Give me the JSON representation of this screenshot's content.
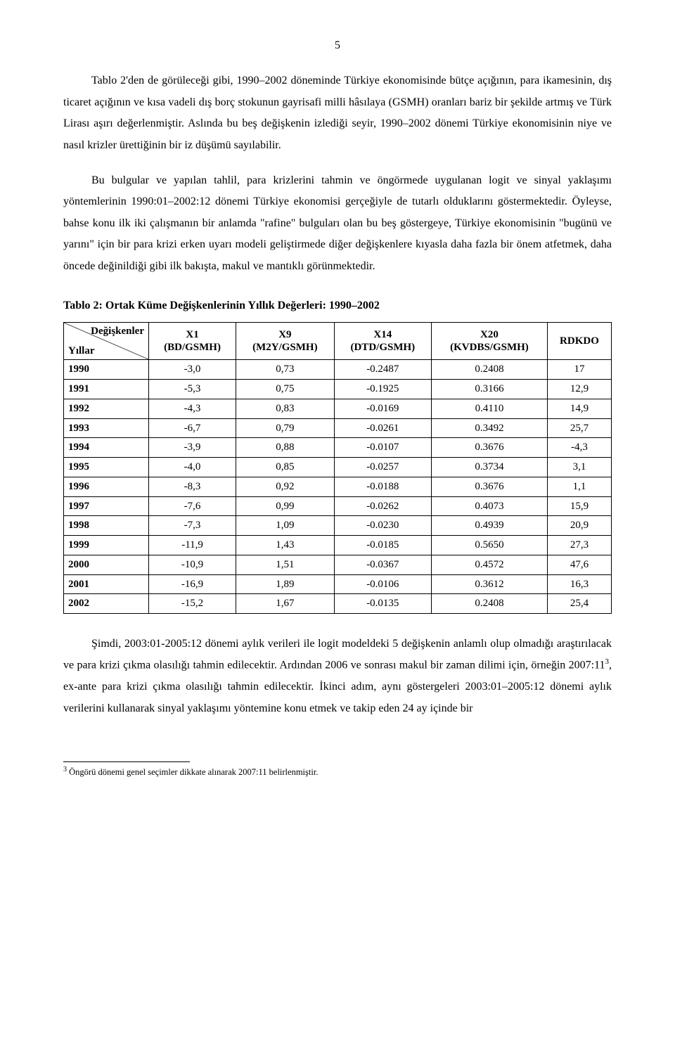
{
  "page_number": "5",
  "paragraphs": {
    "p1": "Tablo 2'den de görüleceği gibi, 1990–2002 döneminde Türkiye ekonomisinde bütçe açığının, para ikamesinin, dış ticaret açığının ve kısa vadeli dış borç stokunun gayrisafi milli hâsılaya (GSMH) oranları bariz bir şekilde artmış ve Türk Lirası aşırı değerlenmiştir. Aslında bu beş değişkenin izlediği seyir, 1990–2002 dönemi Türkiye ekonomisinin niye ve nasıl krizler ürettiğinin bir iz düşümü sayılabilir.",
    "p2_a": "Bu bulgular ve yapılan tahlil, para krizlerini tahmin ve öngörmede uygulanan logit ve sinyal yaklaşımı yöntemlerinin 1990:01–2002:12 dönemi Türkiye ekonomisi gerçeğiyle de tutarlı olduklarını göstermektedir. Öyleyse, bahse konu ilk iki çalışmanın bir anlamda \"rafine\" bulguları olan bu beş göstergeye, Türkiye ekonomisinin \"bugünü ve yarını\" için bir para krizi erken uyarı modeli geliştirmede diğer değişkenlere kıyasla daha fazla bir önem atfetmek, daha öncede değinildiği gibi ilk bakışta, makul ve mantıklı görünmektedir.",
    "p3_a": "Şimdi, 2003:01-2005:12 dönemi aylık verileri ile logit modeldeki 5 değişkenin anlamlı olup olmadığı araştırılacak ve para krizi çıkma olasılığı tahmin edilecektir. Ardından 2006 ve sonrası makul bir zaman dilimi için, örneğin 2007:11",
    "p3_b": ", ex-ante para krizi çıkma olasılığı tahmin edilecektir. İkinci adım, aynı göstergeleri 2003:01–2005:12 dönemi aylık verilerini kullanarak sinyal yaklaşımı yöntemine konu etmek ve takip eden 24 ay içinde bir",
    "p3_sup": "3"
  },
  "table": {
    "title": "Tablo 2: Ortak Küme Değişkenlerinin Yıllık Değerleri: 1990–2002",
    "header": {
      "corner_top": "Değişkenler",
      "corner_bottom": "Yıllar",
      "cols": [
        {
          "line1": "X1",
          "line2": "(BD/GSMH)"
        },
        {
          "line1": "X9",
          "line2": "(M2Y/GSMH)"
        },
        {
          "line1": "X14",
          "line2": "(DTD/GSMH)"
        },
        {
          "line1": "X20",
          "line2": "(KVDBS/GSMH)"
        },
        {
          "line1": "RDKDO",
          "line2": ""
        }
      ]
    },
    "rows": [
      {
        "year": "1990",
        "c1": "-3,0",
        "c2": "0,73",
        "c3": "-0.2487",
        "c4": "0.2408",
        "c5": "17"
      },
      {
        "year": "1991",
        "c1": "-5,3",
        "c2": "0,75",
        "c3": "-0.1925",
        "c4": "0.3166",
        "c5": "12,9"
      },
      {
        "year": "1992",
        "c1": "-4,3",
        "c2": "0,83",
        "c3": "-0.0169",
        "c4": "0.4110",
        "c5": "14,9"
      },
      {
        "year": "1993",
        "c1": "-6,7",
        "c2": "0,79",
        "c3": "-0.0261",
        "c4": "0.3492",
        "c5": "25,7"
      },
      {
        "year": "1994",
        "c1": "-3,9",
        "c2": "0,88",
        "c3": "-0.0107",
        "c4": "0.3676",
        "c5": "-4,3"
      },
      {
        "year": "1995",
        "c1": "-4,0",
        "c2": "0,85",
        "c3": "-0.0257",
        "c4": "0.3734",
        "c5": "3,1"
      },
      {
        "year": "1996",
        "c1": "-8,3",
        "c2": "0,92",
        "c3": "-0.0188",
        "c4": "0.3676",
        "c5": "1,1"
      },
      {
        "year": "1997",
        "c1": "-7,6",
        "c2": "0,99",
        "c3": "-0.0262",
        "c4": "0.4073",
        "c5": "15,9"
      },
      {
        "year": "1998",
        "c1": "-7,3",
        "c2": "1,09",
        "c3": "-0.0230",
        "c4": "0.4939",
        "c5": "20,9"
      },
      {
        "year": "1999",
        "c1": "-11,9",
        "c2": "1,43",
        "c3": "-0.0185",
        "c4": "0.5650",
        "c5": "27,3"
      },
      {
        "year": "2000",
        "c1": "-10,9",
        "c2": "1,51",
        "c3": "-0.0367",
        "c4": "0.4572",
        "c5": "47,6"
      },
      {
        "year": "2001",
        "c1": "-16,9",
        "c2": "1,89",
        "c3": "-0.0106",
        "c4": "0.3612",
        "c5": "16,3"
      },
      {
        "year": "2002",
        "c1": "-15,2",
        "c2": "1,67",
        "c3": "-0.0135",
        "c4": "0.2408",
        "c5": "25,4"
      }
    ]
  },
  "footnote": {
    "marker": "3",
    "text": " Öngörü dönemi genel seçimler dikkate alınarak 2007:11 belirlenmiştir."
  }
}
